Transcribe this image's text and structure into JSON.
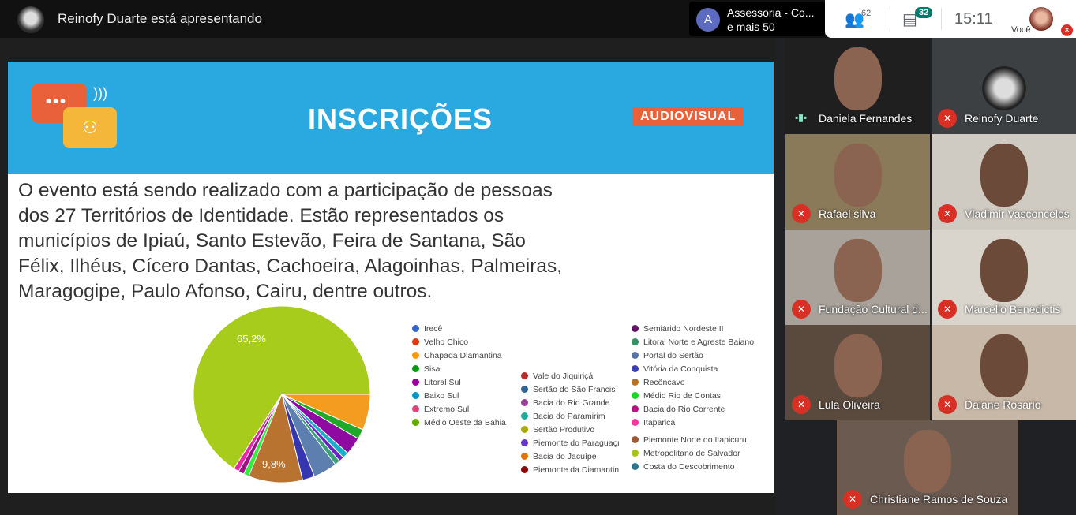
{
  "topbar": {
    "presenter_title": "Reinofy Duarte está apresentando",
    "others": {
      "avatar_letter": "A",
      "line1": "Assessoria - Co...",
      "line2": "e mais 50"
    },
    "people_count": "62",
    "chat_count": "32",
    "clock": "15:11",
    "you_label": "Você"
  },
  "slide": {
    "title": "INSCRIÇÕES",
    "badge": "AUDIOVISUAL",
    "body": "O evento está sendo realizado com a participação de pessoas dos 27 Territórios de Identidade. Estão representados os municípios de Ipiaú, Santo Estevão, Feira de Santana, São Félix, Ilhéus, Cícero Dantas, Cachoeira, Alagoinhas, Palmeiras, Maragogipe, Paulo Afonso, Cairu, dentre outros."
  },
  "chart_data": {
    "type": "pie",
    "slices": [
      {
        "name": "Chapada Diamantina",
        "value": 6.5,
        "color": "#f39c1f"
      },
      {
        "name": "Sisal",
        "value": 1.8,
        "color": "#1fa82a"
      },
      {
        "name": "Litoral Sul",
        "value": 3.2,
        "color": "#8e0aa0"
      },
      {
        "name": "Baixo Sul",
        "value": 1.1,
        "color": "#19aec9"
      },
      {
        "name": "Piemonte do Paraguaçu",
        "value": 0.9,
        "color": "#6a22c8"
      },
      {
        "name": "Litoral Norte e Agreste Baiano",
        "value": 1.0,
        "color": "#3aa276"
      },
      {
        "name": "Portal do Sertão",
        "value": 4.3,
        "color": "#5c7fb0"
      },
      {
        "name": "Vitória da Conquista",
        "value": 2.2,
        "color": "#3636b0"
      },
      {
        "name": "Recôncavo",
        "value": 9.8,
        "color": "#b87330",
        "label": "9,8%"
      },
      {
        "name": "Médio Rio de Contas",
        "value": 1.0,
        "color": "#2ef03a"
      },
      {
        "name": "Bacia do Rio Corrente",
        "value": 1.0,
        "color": "#a0108a"
      },
      {
        "name": "Itaparica",
        "value": 1.0,
        "color": "#e828a8"
      },
      {
        "name": "Metropolitano de Salvador",
        "value": 65.2,
        "color": "#a8cc1c",
        "label": "65,2%"
      }
    ],
    "legend": [
      [
        {
          "name": "Irecê",
          "color": "#3366cc"
        },
        {
          "name": "Velho Chico",
          "color": "#dc3912"
        },
        {
          "name": "Chapada Diamantina",
          "color": "#ff9900"
        },
        {
          "name": "Sisal",
          "color": "#109618"
        },
        {
          "name": "Litoral Sul",
          "color": "#990099"
        },
        {
          "name": "Baixo Sul",
          "color": "#0099c6"
        },
        {
          "name": "Extremo Sul",
          "color": "#dd4477"
        },
        {
          "name": "Médio Oeste da Bahia",
          "color": "#66aa00"
        }
      ],
      [
        {
          "name": "Vale do Jiquiriçá",
          "color": "#b82e2e"
        },
        {
          "name": "Sertão do São Francis",
          "color": "#316395"
        },
        {
          "name": "Bacia do Rio Grande",
          "color": "#994499"
        },
        {
          "name": "Bacia do Paramirim",
          "color": "#22aa99"
        },
        {
          "name": "Sertão Produtivo",
          "color": "#aaaa11"
        },
        {
          "name": "Piemonte do Paraguaçı",
          "color": "#6633cc"
        },
        {
          "name": "Bacia do Jacuípe",
          "color": "#e67300"
        },
        {
          "name": "Piemonte da Diamantin",
          "color": "#8b0707"
        }
      ],
      [
        {
          "name": "Semiárido Nordeste II",
          "color": "#651067"
        },
        {
          "name": "Litoral Norte e Agreste Baiano",
          "color": "#329262"
        },
        {
          "name": "Portal do Sertão",
          "color": "#5574a6"
        },
        {
          "name": "Vitória da Conquista",
          "color": "#3b3eac"
        },
        {
          "name": "Recôncavo",
          "color": "#b77322"
        },
        {
          "name": "Médio Rio de Contas",
          "color": "#16d620"
        },
        {
          "name": "Bacia do Rio Corrente",
          "color": "#b91383"
        },
        {
          "name": "Itaparica",
          "color": "#f4359e"
        }
      ],
      [
        {
          "name": "Piemonte Norte do Itapicuru",
          "color": "#9c5935"
        },
        {
          "name": "Metropolitano de Salvador",
          "color": "#a9c413"
        },
        {
          "name": "Costa do Descobrimento",
          "color": "#2a778d"
        }
      ]
    ]
  },
  "participants": [
    {
      "name": "Daniela Fernandes",
      "muted": false
    },
    {
      "name": "Reinofy Duarte",
      "muted": true
    },
    {
      "name": "Rafael silva",
      "muted": true
    },
    {
      "name": "Vladimir Vasconcelos",
      "muted": true
    },
    {
      "name": "Fundação Cultural d...",
      "muted": true
    },
    {
      "name": "Marcello Benedictis",
      "muted": true
    },
    {
      "name": "Lula Oliveira",
      "muted": true
    },
    {
      "name": "Daiane Rosario",
      "muted": true
    },
    {
      "name": "Christiane Ramos de Souza",
      "muted": true
    }
  ]
}
